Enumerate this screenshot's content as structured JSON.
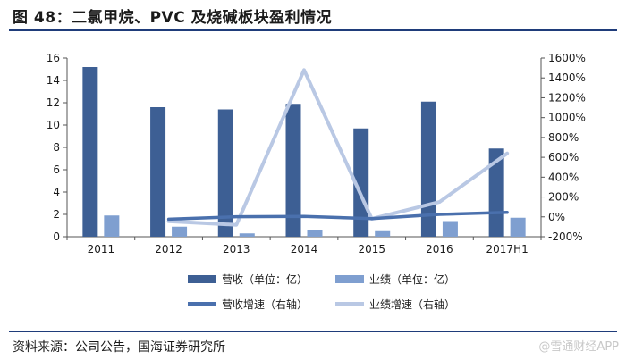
{
  "title": "图 48：二氯甲烷、PVC 及烧碱板块盈利情况",
  "source": "资料来源：公司公告，国海证券研究所",
  "watermark": "@雪通财经APP",
  "colors": {
    "revenue_bar": "#3d5f94",
    "profit_bar": "#7f9fd0",
    "revenue_growth_line": "#4a70ad",
    "profit_growth_line": "#b9c8e4",
    "title_rule": "#1f3c7a"
  },
  "chart_data": {
    "type": "bar",
    "categories": [
      "2011",
      "2012",
      "2013",
      "2014",
      "2015",
      "2016",
      "2017H1"
    ],
    "ylim": [
      0,
      16
    ],
    "yticks": [
      0,
      2,
      4,
      6,
      8,
      10,
      12,
      14,
      16
    ],
    "y2lim": [
      -200,
      1600
    ],
    "y2ticks": [
      -200,
      0,
      200,
      400,
      600,
      800,
      1000,
      1200,
      1400,
      1600
    ],
    "y2_tick_labels": [
      "-200%",
      "0%",
      "200%",
      "400%",
      "600%",
      "800%",
      "1000%",
      "1200%",
      "1400%",
      "1600%"
    ],
    "series": [
      {
        "name": "营收（单位：亿）",
        "type": "bar",
        "axis": "left",
        "values": [
          15.2,
          11.6,
          11.4,
          11.9,
          9.7,
          12.1,
          7.9
        ]
      },
      {
        "name": "业绩（单位：亿）",
        "type": "bar",
        "axis": "left",
        "values": [
          1.9,
          0.9,
          0.3,
          0.6,
          0.5,
          1.4,
          1.7
        ]
      },
      {
        "name": "营收增速（右轴）",
        "type": "line",
        "axis": "right",
        "values": [
          null,
          -24,
          2,
          5,
          -18,
          25,
          45
        ]
      },
      {
        "name": "业绩增速（右轴）",
        "type": "line",
        "axis": "right",
        "values": [
          null,
          -45,
          -80,
          1480,
          -20,
          150,
          640
        ]
      }
    ],
    "grid": false,
    "legend_position": "bottom"
  }
}
